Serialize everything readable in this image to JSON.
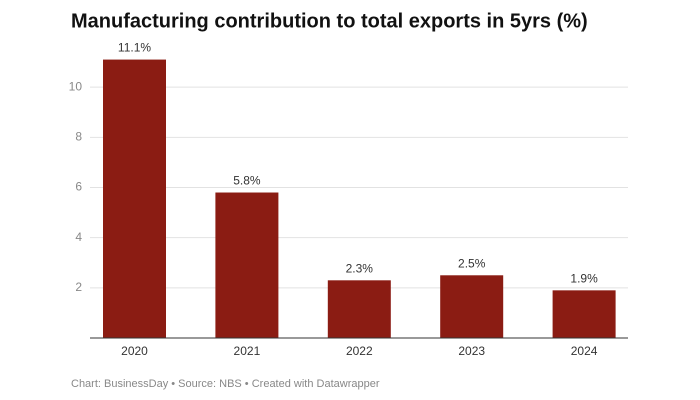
{
  "chart_data": {
    "type": "bar",
    "title": "Manufacturing contribution to total exports in 5yrs (%)",
    "categories": [
      "2020",
      "2021",
      "2022",
      "2023",
      "2024"
    ],
    "values": [
      11.1,
      5.8,
      2.3,
      2.5,
      1.9
    ],
    "value_labels": [
      "11.1%",
      "5.8%",
      "2.3%",
      "2.5%",
      "1.9%"
    ],
    "color": "#8b1c13",
    "ylim": [
      0,
      12
    ],
    "yticks": [
      2,
      4,
      6,
      8,
      10
    ],
    "grid": true,
    "footer": "Chart: BusinessDay • Source: NBS • Created with Datawrapper"
  }
}
